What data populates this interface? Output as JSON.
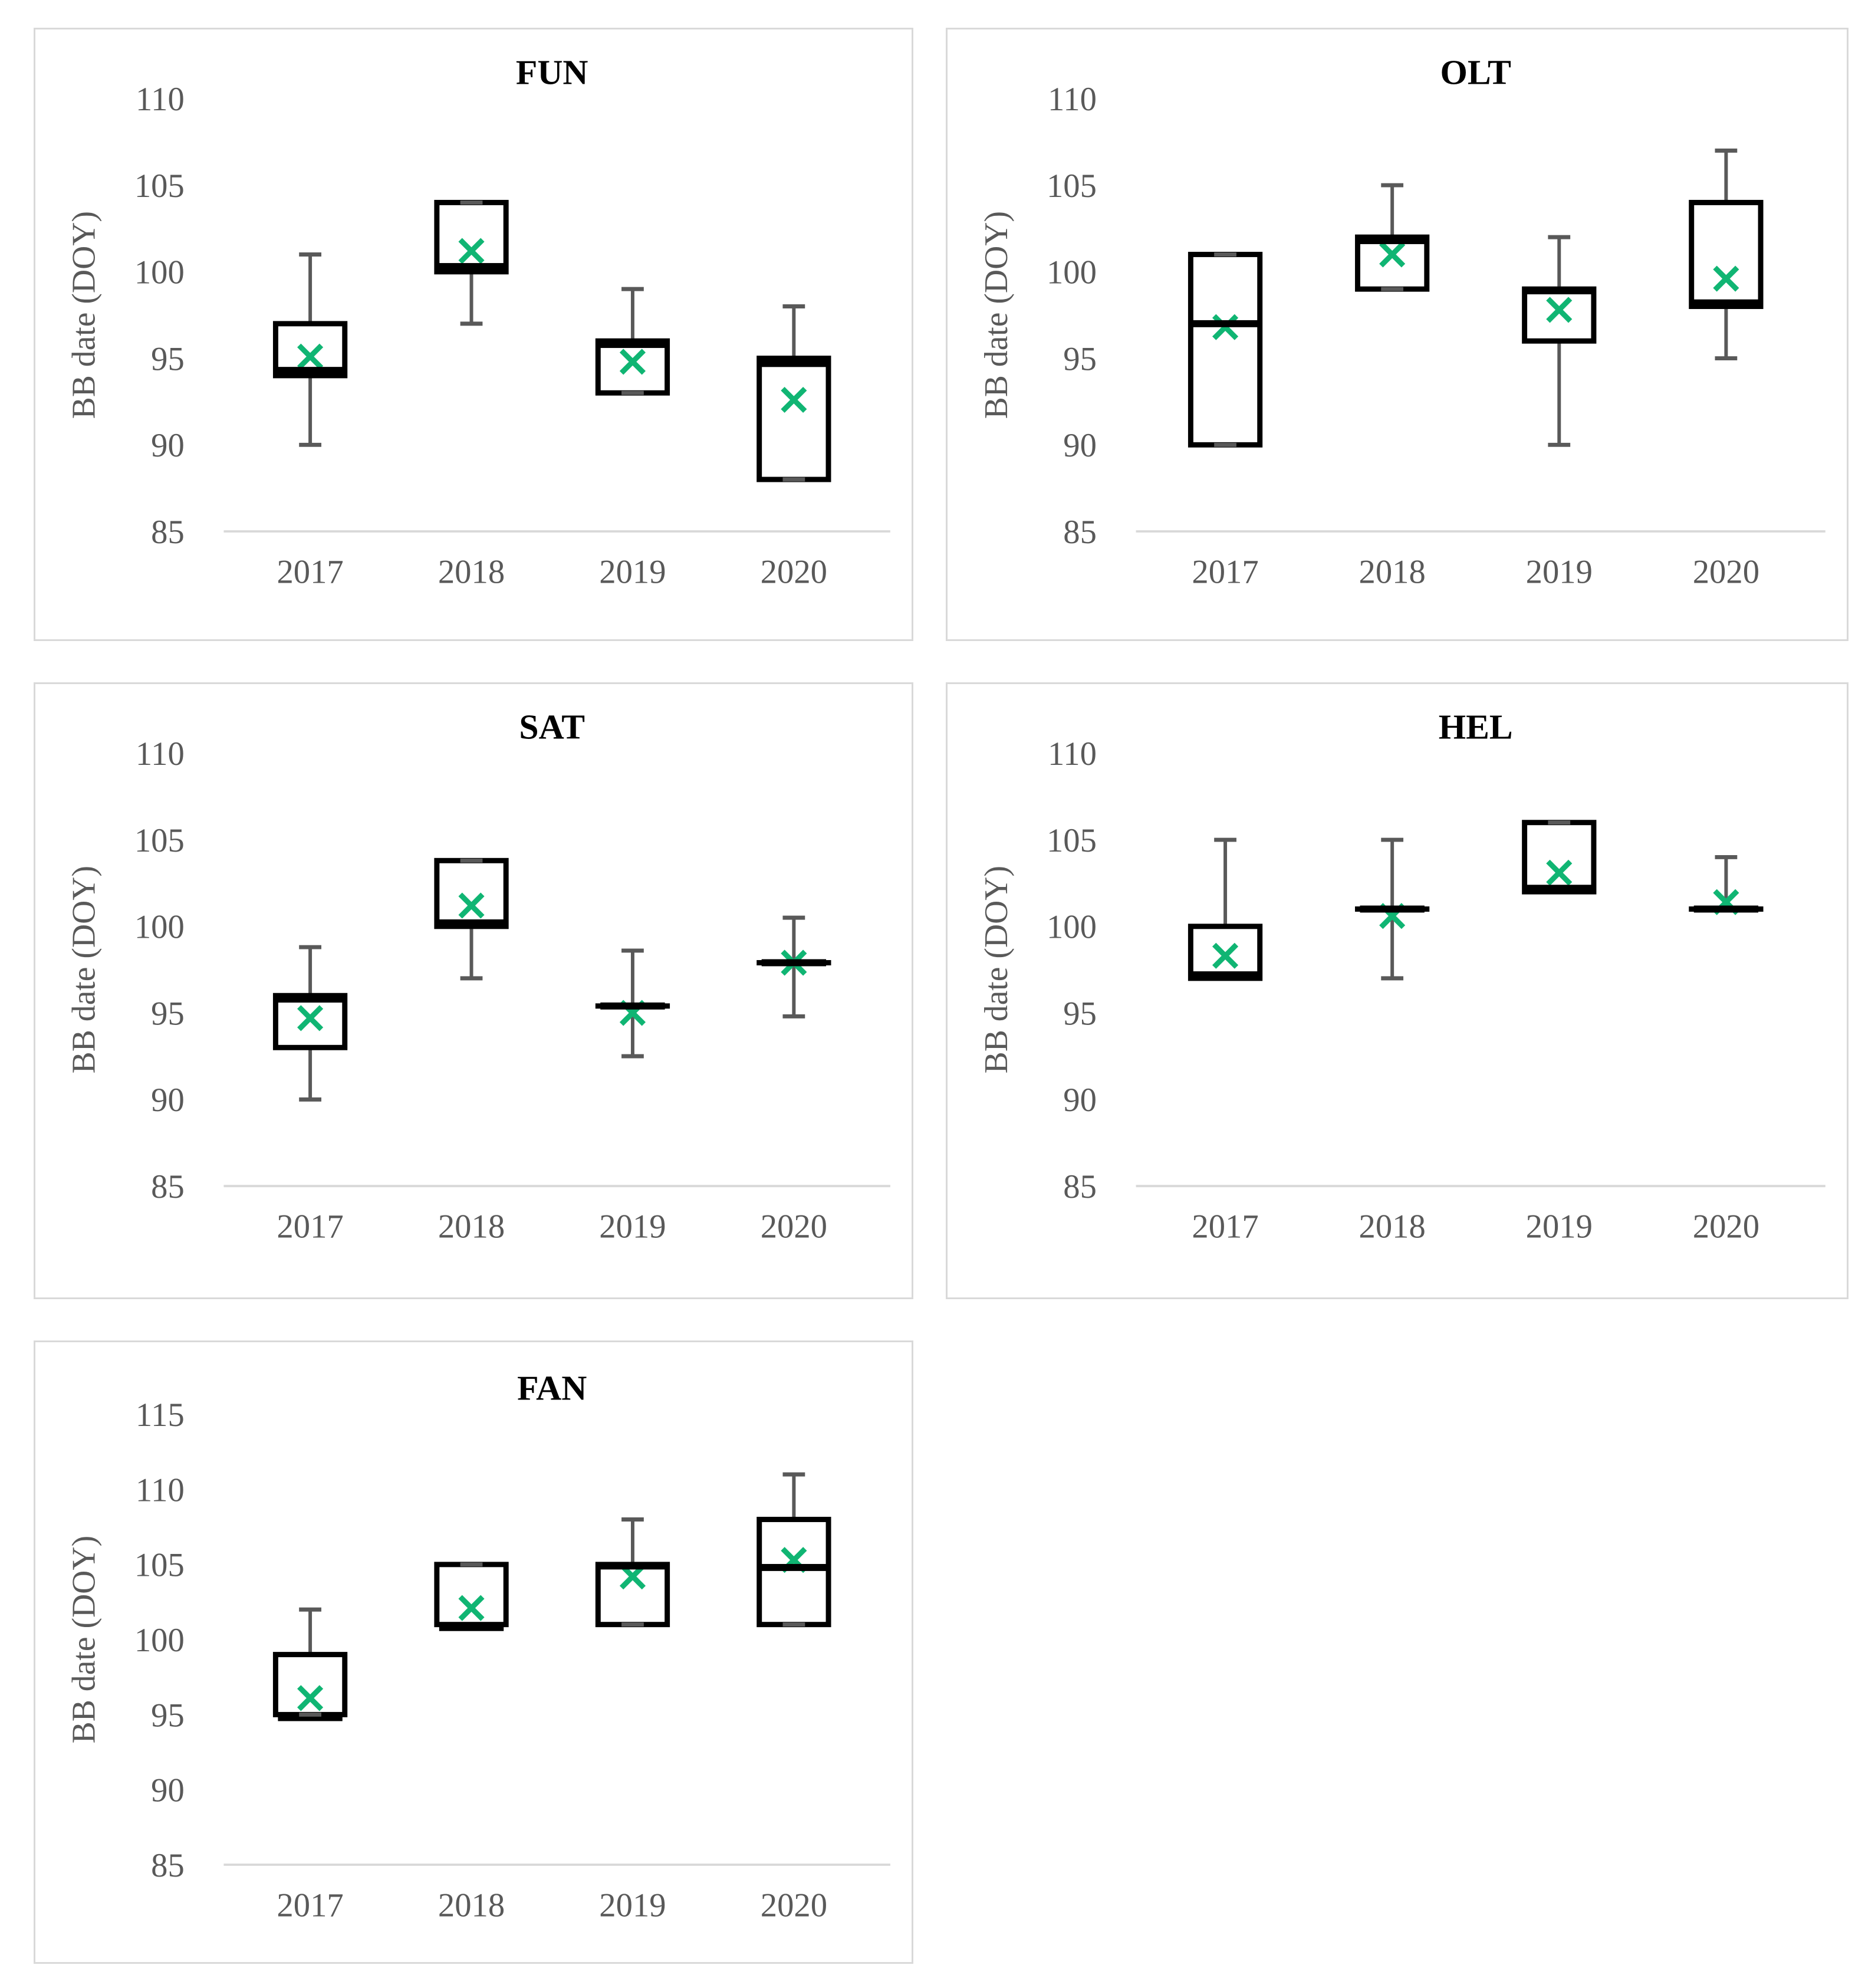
{
  "figure": {
    "ylabel": "BB date (DOY)",
    "categories": [
      "2017",
      "2018",
      "2019",
      "2020"
    ],
    "colors": {
      "panel_border": "#D9D9D9",
      "axis_line": "#D9D9D9",
      "box_outline": "#000000",
      "median": "#000000",
      "whisker": "#595959",
      "mean_marker": "#10B573",
      "tick_label": "#595959",
      "title": "#000000",
      "background": "#FFFFFF"
    }
  },
  "chart_data": [
    {
      "type": "box",
      "title": "FUN",
      "ylabel": "BB date (DOY)",
      "xlabel": "",
      "categories": [
        "2017",
        "2018",
        "2019",
        "2020"
      ],
      "ylim": [
        85,
        110
      ],
      "yticks": [
        85,
        90,
        95,
        100,
        105,
        110
      ],
      "grid": false,
      "legend": "none",
      "boxes": [
        {
          "x": "2017",
          "whisker_low": 90,
          "q1": 94,
          "median": 94.3,
          "q3": 97,
          "whisker_high": 101,
          "mean": 95.1
        },
        {
          "x": "2018",
          "whisker_low": 97,
          "q1": 100,
          "median": 100.3,
          "q3": 104,
          "whisker_high": 104,
          "mean": 101.2
        },
        {
          "x": "2019",
          "whisker_low": 93,
          "q1": 93,
          "median": 95.8,
          "q3": 96,
          "whisker_high": 99,
          "mean": 94.8
        },
        {
          "x": "2020",
          "whisker_low": 88,
          "q1": 88,
          "median": 94.7,
          "q3": 95,
          "whisker_high": 98,
          "mean": 92.6
        }
      ]
    },
    {
      "type": "box",
      "title": "OLT",
      "ylabel": "BB date (DOY)",
      "xlabel": "",
      "categories": [
        "2017",
        "2018",
        "2019",
        "2020"
      ],
      "ylim": [
        85,
        110
      ],
      "yticks": [
        85,
        90,
        95,
        100,
        105,
        110
      ],
      "grid": false,
      "legend": "none",
      "boxes": [
        {
          "x": "2017",
          "whisker_low": 90,
          "q1": 90,
          "median": 97,
          "q3": 101,
          "whisker_high": 101,
          "mean": 96.8
        },
        {
          "x": "2018",
          "whisker_low": 99,
          "q1": 99,
          "median": 101.8,
          "q3": 102,
          "whisker_high": 105,
          "mean": 101.0
        },
        {
          "x": "2019",
          "whisker_low": 90,
          "q1": 96,
          "median": 98.9,
          "q3": 99,
          "whisker_high": 102,
          "mean": 97.8
        },
        {
          "x": "2020",
          "whisker_low": 95,
          "q1": 98,
          "median": 98.2,
          "q3": 104,
          "whisker_high": 107,
          "mean": 99.6
        }
      ]
    },
    {
      "type": "box",
      "title": "SAT",
      "ylabel": "BB date (DOY)",
      "xlabel": "",
      "categories": [
        "2017",
        "2018",
        "2019",
        "2020"
      ],
      "ylim": [
        85,
        110
      ],
      "yticks": [
        85,
        90,
        95,
        100,
        105,
        110
      ],
      "grid": false,
      "legend": "none",
      "boxes": [
        {
          "x": "2017",
          "whisker_low": 90,
          "q1": 93,
          "median": 95.8,
          "q3": 96,
          "whisker_high": 98.8,
          "mean": 94.7
        },
        {
          "x": "2018",
          "whisker_low": 97,
          "q1": 100,
          "median": 100.2,
          "q3": 103.8,
          "whisker_high": 103.8,
          "mean": 101.2
        },
        {
          "x": "2019",
          "whisker_low": 92.5,
          "q1": 95.4,
          "median": 95.4,
          "q3": 95.4,
          "whisker_high": 98.6,
          "mean": 95.0
        },
        {
          "x": "2020",
          "whisker_low": 94.8,
          "q1": 97.9,
          "median": 97.9,
          "q3": 97.9,
          "whisker_high": 100.5,
          "mean": 97.9
        }
      ]
    },
    {
      "type": "box",
      "title": "HEL",
      "ylabel": "BB date (DOY)",
      "xlabel": "",
      "categories": [
        "2017",
        "2018",
        "2019",
        "2020"
      ],
      "ylim": [
        85,
        110
      ],
      "yticks": [
        85,
        90,
        95,
        100,
        105,
        110
      ],
      "grid": false,
      "legend": "none",
      "boxes": [
        {
          "x": "2017",
          "whisker_low": null,
          "q1": 97,
          "median": 97.2,
          "q3": 100,
          "whisker_high": 105,
          "mean": 98.3
        },
        {
          "x": "2018",
          "whisker_low": 97,
          "q1": 101,
          "median": 101,
          "q3": 101,
          "whisker_high": 105,
          "mean": 100.6
        },
        {
          "x": "2019",
          "whisker_low": null,
          "q1": 102,
          "median": 102.2,
          "q3": 106,
          "whisker_high": 106,
          "mean": 103.1
        },
        {
          "x": "2020",
          "whisker_low": null,
          "q1": 101,
          "median": 101,
          "q3": 101,
          "whisker_high": 104,
          "mean": 101.4
        }
      ]
    },
    {
      "type": "box",
      "title": "FAN",
      "ylabel": "BB date (DOY)",
      "xlabel": "",
      "categories": [
        "2017",
        "2018",
        "2019",
        "2020"
      ],
      "ylim": [
        85,
        115
      ],
      "yticks": [
        85,
        90,
        95,
        100,
        105,
        110,
        115
      ],
      "grid": false,
      "legend": "none",
      "boxes": [
        {
          "x": "2017",
          "whisker_low": 95,
          "q1": 95,
          "median": 94.8,
          "q3": 99,
          "whisker_high": 102,
          "mean": 96.1
        },
        {
          "x": "2018",
          "whisker_low": null,
          "q1": 101,
          "median": 100.8,
          "q3": 105,
          "whisker_high": 105,
          "mean": 102.1
        },
        {
          "x": "2019",
          "whisker_low": 101,
          "q1": 101,
          "median": 104.9,
          "q3": 105,
          "whisker_high": 108,
          "mean": 104.2
        },
        {
          "x": "2020",
          "whisker_low": 101,
          "q1": 101,
          "median": 104.8,
          "q3": 108,
          "whisker_high": 111,
          "mean": 105.3
        }
      ]
    }
  ]
}
